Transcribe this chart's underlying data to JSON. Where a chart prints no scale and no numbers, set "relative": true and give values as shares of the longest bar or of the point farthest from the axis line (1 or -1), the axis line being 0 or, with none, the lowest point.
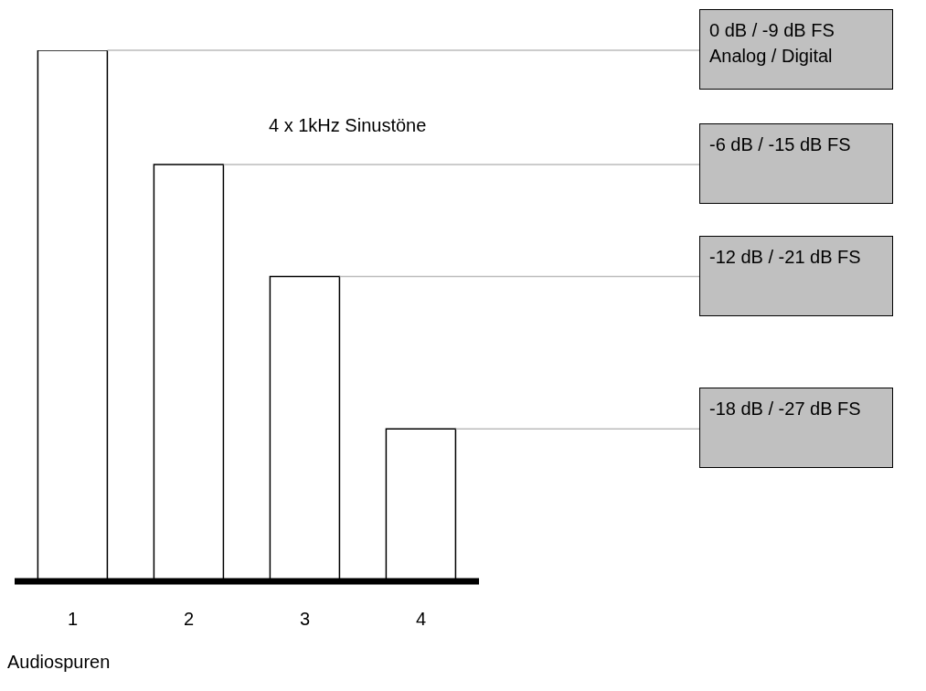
{
  "chart_data": {
    "type": "bar",
    "title": "4 x 1kHz Sinustöne",
    "xlabel": "Audiospuren",
    "categories": [
      "1",
      "2",
      "3",
      "4"
    ],
    "values": [
      1,
      0.785,
      0.574,
      0.287
    ],
    "color": "#ffffff",
    "relative": true,
    "ref_lines": [
      {
        "axis": "y",
        "value": 1,
        "label": "0 dB / -9 dB FS Analog / Digital",
        "color": "#bbbbbb"
      },
      {
        "axis": "y",
        "value": 0.785,
        "label": "-6 dB / -15 dB FS",
        "color": "#bbbbbb"
      },
      {
        "axis": "y",
        "value": 0.574,
        "label": "-12 dB / -21 dB FS",
        "color": "#bbbbbb"
      },
      {
        "axis": "y",
        "value": 0.287,
        "label": "-18 dB / -27 dB FS",
        "color": "#bbbbbb"
      }
    ]
  }
}
